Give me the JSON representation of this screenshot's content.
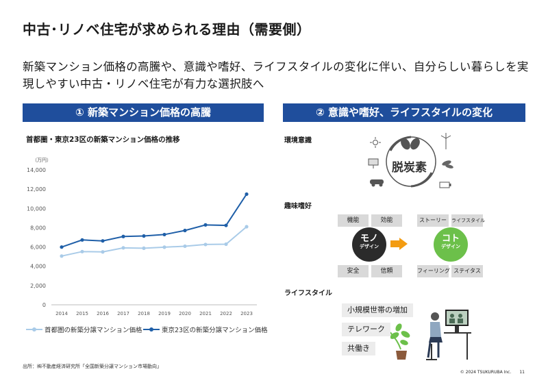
{
  "title": "中古･リノベ住宅が求められる理由（需要側）",
  "lead": "新築マンション価格の高騰や、意識や嗜好、ライフスタイルの変化に伴い、自分らしい暮らしを実現しやすい中古・リノベ住宅が有力な選択肢へ",
  "left_section": {
    "header": "① 新築マンション価格の高騰"
  },
  "right_section": {
    "header": "② 意識や嗜好、ライフスタイルの変化",
    "eco_label": "環境意識",
    "decarb_text": "脱炭素",
    "hobby_label": "趣味嗜好",
    "mono": {
      "big": "モノ",
      "small": "デザイン"
    },
    "koto": {
      "big": "コト",
      "small": "デザイン"
    },
    "mono_items": [
      "機能",
      "効能",
      "安全",
      "信頼"
    ],
    "koto_items": [
      "ストーリー",
      "ライフスタイル",
      "フィーリング",
      "ステイタス"
    ],
    "lifestyle_label": "ライフスタイル",
    "lifestyle_items": [
      "小規模世帯の増加",
      "テレワーク",
      "共働き"
    ]
  },
  "source": "出所：㈱不動産経済研究所「全国新築分譲マンション市場動向」",
  "footer": "© 2024 TSUKURUBA Inc.　　11",
  "colors": {
    "navy": "#1f4e9c",
    "light_series": "#a9cbe8",
    "dark_series": "#1f5fa8",
    "mono": "#2b2b2b",
    "koto": "#6cc04a",
    "arrow": "#f39c12"
  },
  "chart_data": {
    "type": "line",
    "title": "首都圏・東京23区の新築マンション価格の推移",
    "ylabel": "（万円）",
    "ylim": [
      0,
      14000
    ],
    "yticks": [
      0,
      2000,
      4000,
      6000,
      8000,
      10000,
      12000,
      14000
    ],
    "ytick_labels": [
      "0",
      "2,000",
      "4,000",
      "6,000",
      "8,000",
      "10,000",
      "12,000",
      "14,000"
    ],
    "x": [
      "2014",
      "2015",
      "2016",
      "2017",
      "2018",
      "2019",
      "2020",
      "2021",
      "2022",
      "2023"
    ],
    "legend_position": "bottom",
    "grid": false,
    "series": [
      {
        "name": "首都圏の新築分譲マンション価格",
        "color": "#a9cbe8",
        "values": [
          5060,
          5520,
          5490,
          5910,
          5870,
          5980,
          6080,
          6260,
          6290,
          8100
        ]
      },
      {
        "name": "東京23区の新築分譲マンション価格",
        "color": "#1f5fa8",
        "values": [
          5990,
          6730,
          6630,
          7090,
          7140,
          7290,
          7710,
          8290,
          8240,
          11480
        ]
      }
    ]
  }
}
